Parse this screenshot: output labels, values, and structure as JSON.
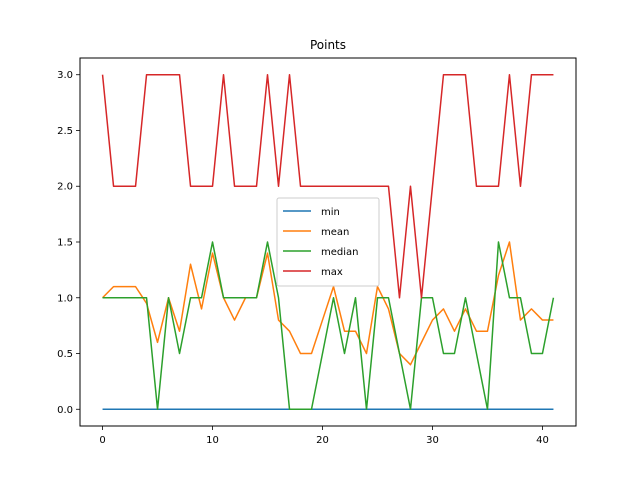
{
  "chart_data": {
    "type": "line",
    "title": "Points",
    "xlabel": "",
    "ylabel": "",
    "xlim": [
      -2.05,
      43.05
    ],
    "ylim": [
      -0.15,
      3.15
    ],
    "xticks": [
      0,
      10,
      20,
      30,
      40
    ],
    "yticks": [
      0.0,
      0.5,
      1.0,
      1.5,
      2.0,
      2.5,
      3.0
    ],
    "xtick_labels": [
      "0",
      "10",
      "20",
      "30",
      "40"
    ],
    "ytick_labels": [
      "0.0",
      "0.5",
      "1.0",
      "1.5",
      "2.0",
      "2.5",
      "3.0"
    ],
    "grid": false,
    "legend_placement": "center",
    "x": [
      0,
      1,
      2,
      3,
      4,
      5,
      6,
      7,
      8,
      9,
      10,
      11,
      12,
      13,
      14,
      15,
      16,
      17,
      18,
      19,
      20,
      21,
      22,
      23,
      24,
      25,
      26,
      27,
      28,
      29,
      30,
      31,
      32,
      33,
      34,
      35,
      36,
      37,
      38,
      39,
      40,
      41
    ],
    "series": [
      {
        "name": "min",
        "color": "#1f77b4",
        "values": [
          0,
          0,
          0,
          0,
          0,
          0,
          0,
          0,
          0,
          0,
          0,
          0,
          0,
          0,
          0,
          0,
          0,
          0,
          0,
          0,
          0,
          0,
          0,
          0,
          0,
          0,
          0,
          0,
          0,
          0,
          0,
          0,
          0,
          0,
          0,
          0,
          0,
          0,
          0,
          0,
          0,
          0
        ]
      },
      {
        "name": "mean",
        "color": "#ff7f0e",
        "values": [
          1.0,
          1.1,
          1.1,
          1.1,
          0.95,
          0.6,
          1.0,
          0.7,
          1.3,
          0.9,
          1.4,
          1.0,
          0.8,
          1.0,
          1.0,
          1.4,
          0.8,
          0.7,
          0.5,
          0.5,
          0.8,
          1.1,
          0.7,
          0.7,
          0.5,
          1.1,
          0.9,
          0.5,
          0.4,
          0.6,
          0.8,
          0.9,
          0.7,
          0.9,
          0.7,
          0.7,
          1.2,
          1.5,
          0.8,
          0.9,
          0.8,
          0.8
        ]
      },
      {
        "name": "median",
        "color": "#2ca02c",
        "values": [
          1.0,
          1.0,
          1.0,
          1.0,
          1.0,
          0.0,
          1.0,
          0.5,
          1.0,
          1.0,
          1.5,
          1.0,
          1.0,
          1.0,
          1.0,
          1.5,
          1.0,
          0.0,
          0.0,
          0.0,
          0.5,
          1.0,
          0.5,
          1.0,
          0.0,
          1.0,
          1.0,
          0.5,
          0.0,
          1.0,
          1.0,
          0.5,
          0.5,
          1.0,
          0.5,
          0.0,
          1.5,
          1.0,
          1.0,
          0.5,
          0.5,
          1.0
        ]
      },
      {
        "name": "max",
        "color": "#d62728",
        "values": [
          3,
          2,
          2,
          2,
          3,
          3,
          3,
          3,
          2,
          2,
          2,
          3,
          2,
          2,
          2,
          3,
          2,
          3,
          2,
          2,
          2,
          2,
          2,
          2,
          2,
          2,
          2,
          1,
          2,
          1,
          2,
          3,
          3,
          3,
          2,
          2,
          2,
          3,
          2,
          3,
          3,
          3
        ]
      }
    ]
  }
}
